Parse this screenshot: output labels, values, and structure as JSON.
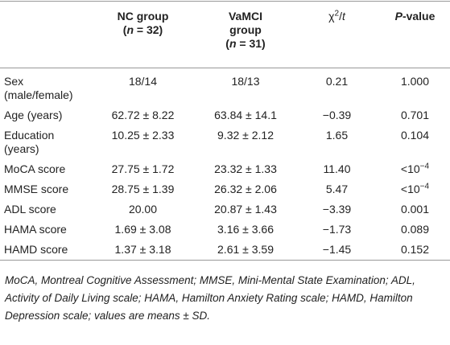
{
  "table": {
    "columns": [
      [
        "NC group",
        "(",
        "n",
        " = 32)"
      ],
      [
        "VaMCI group",
        "(",
        "n",
        " = 31)"
      ],
      [
        "χ",
        "2",
        "/",
        "t"
      ],
      [
        "P",
        "-value"
      ]
    ],
    "rows": [
      [
        "Sex (male/female)",
        "18/14",
        "18/13",
        "0.21",
        "1.000"
      ],
      [
        "Age (years)",
        "62.72 ± 8.22",
        "63.84 ± 14.1",
        "−0.39",
        "0.701"
      ],
      [
        "Education (years)",
        "10.25 ± 2.33",
        "9.32 ± 2.12",
        "1.65",
        "0.104"
      ],
      [
        "MoCA score",
        "27.75 ± 1.72",
        "23.32 ± 1.33",
        "11.40",
        [
          "<10",
          "−4"
        ]
      ],
      [
        "MMSE score",
        "28.75 ± 1.39",
        "26.32 ± 2.06",
        "5.47",
        [
          "<10",
          "−4"
        ]
      ],
      [
        "ADL score",
        "20.00",
        "20.87 ± 1.43",
        "−3.39",
        "0.001"
      ],
      [
        "HAMA score",
        "1.69 ± 3.08",
        "3.16 ± 3.66",
        "−1.73",
        "0.089"
      ],
      [
        "HAMD score",
        "1.37 ± 3.18",
        "2.61 ± 3.59",
        "−1.45",
        "0.152"
      ]
    ],
    "footnote": "MoCA, Montreal Cognitive Assessment; MMSE, Mini-Mental State Examination; ADL, Activity of Daily Living scale; HAMA, Hamilton Anxiety Rating scale; HAMD, Hamilton Depression scale; values are means ± SD."
  }
}
